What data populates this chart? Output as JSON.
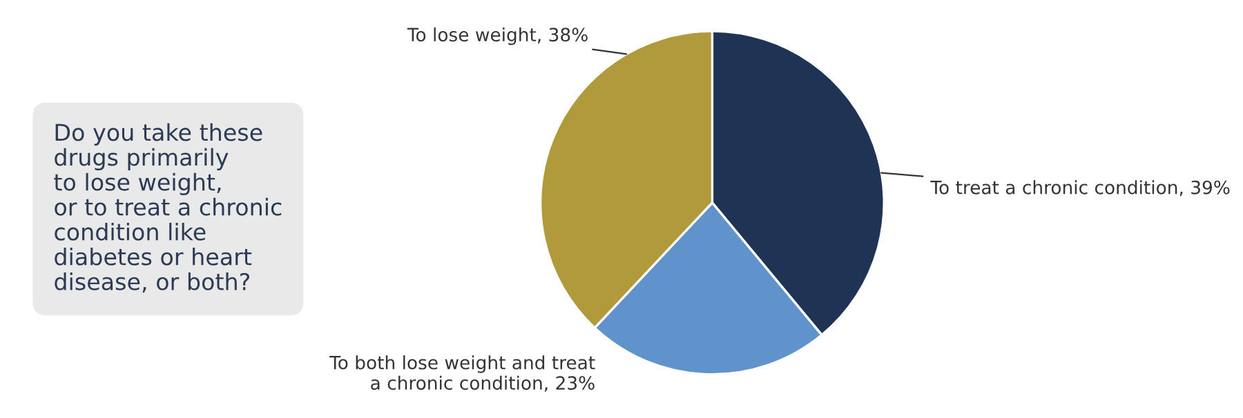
{
  "chart_data": {
    "type": "pie",
    "title": "Do you take these\ndrugs primarily\nto lose weight,\nor to treat a chronic\ncondition like\ndiabetes or heart\ndisease, or both?",
    "categories": [
      "To treat a chronic condition",
      "To both lose weight and treat\na chronic condition",
      "To lose weight"
    ],
    "values": [
      39,
      23,
      38
    ],
    "value_labels": [
      "39%",
      "23%",
      "38%"
    ],
    "colors": [
      "#1f3354",
      "#6092cc",
      "#b09a3c"
    ],
    "legend": false
  }
}
